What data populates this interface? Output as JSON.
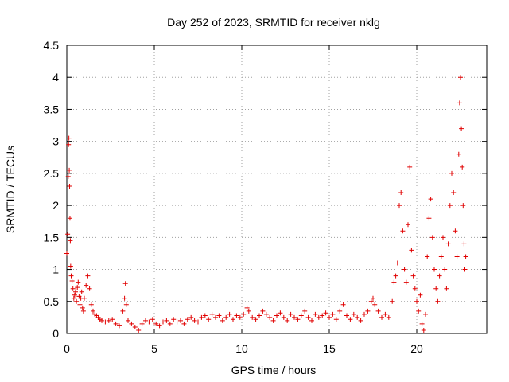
{
  "chart_data": {
    "type": "scatter",
    "title": "Day 252 of 2023, SRMTID for receiver nklg",
    "xlabel": "GPS time / hours",
    "ylabel": "SRMTID / TECUs",
    "xlim": [
      0,
      24
    ],
    "ylim": [
      0,
      4.5
    ],
    "x_ticks": [
      0,
      5,
      10,
      15,
      20
    ],
    "x_tick_labels": [
      "0",
      "5",
      "10",
      "15",
      "20"
    ],
    "y_ticks": [
      0,
      0.5,
      1,
      1.5,
      2,
      2.5,
      3,
      3.5,
      4,
      4.5
    ],
    "y_tick_labels": [
      "0",
      "0.5",
      "1",
      "1.5",
      "2",
      "2.5",
      "3",
      "3.5",
      "4",
      "4.5"
    ],
    "grid": true,
    "marker": "plus",
    "color": "#e00000",
    "series": [
      {
        "name": "SRMTID",
        "points": [
          [
            0.0,
            1.25
          ],
          [
            0.05,
            1.55
          ],
          [
            0.08,
            2.45
          ],
          [
            0.1,
            2.95
          ],
          [
            0.12,
            3.05
          ],
          [
            0.14,
            2.55
          ],
          [
            0.16,
            2.3
          ],
          [
            0.18,
            1.8
          ],
          [
            0.2,
            1.45
          ],
          [
            0.22,
            1.05
          ],
          [
            0.25,
            0.9
          ],
          [
            0.3,
            0.82
          ],
          [
            0.35,
            0.7
          ],
          [
            0.4,
            0.55
          ],
          [
            0.45,
            0.6
          ],
          [
            0.5,
            0.65
          ],
          [
            0.55,
            0.5
          ],
          [
            0.6,
            0.72
          ],
          [
            0.65,
            0.8
          ],
          [
            0.7,
            0.58
          ],
          [
            0.75,
            0.45
          ],
          [
            0.8,
            0.55
          ],
          [
            0.85,
            0.65
          ],
          [
            0.9,
            0.4
          ],
          [
            0.95,
            0.35
          ],
          [
            1.0,
            0.55
          ],
          [
            1.1,
            0.75
          ],
          [
            1.2,
            0.9
          ],
          [
            1.3,
            0.7
          ],
          [
            1.4,
            0.45
          ],
          [
            1.5,
            0.35
          ],
          [
            1.6,
            0.3
          ],
          [
            1.7,
            0.28
          ],
          [
            1.8,
            0.25
          ],
          [
            1.9,
            0.22
          ],
          [
            2.0,
            0.2
          ],
          [
            2.2,
            0.18
          ],
          [
            2.4,
            0.2
          ],
          [
            2.6,
            0.22
          ],
          [
            2.8,
            0.15
          ],
          [
            3.0,
            0.12
          ],
          [
            3.2,
            0.35
          ],
          [
            3.3,
            0.55
          ],
          [
            3.35,
            0.78
          ],
          [
            3.4,
            0.45
          ],
          [
            3.5,
            0.2
          ],
          [
            3.7,
            0.15
          ],
          [
            3.9,
            0.1
          ],
          [
            4.1,
            0.05
          ],
          [
            4.3,
            0.15
          ],
          [
            4.5,
            0.2
          ],
          [
            4.7,
            0.18
          ],
          [
            4.9,
            0.22
          ],
          [
            5.1,
            0.15
          ],
          [
            5.3,
            0.12
          ],
          [
            5.5,
            0.18
          ],
          [
            5.7,
            0.2
          ],
          [
            5.9,
            0.15
          ],
          [
            6.1,
            0.22
          ],
          [
            6.3,
            0.18
          ],
          [
            6.5,
            0.2
          ],
          [
            6.7,
            0.15
          ],
          [
            6.9,
            0.22
          ],
          [
            7.1,
            0.25
          ],
          [
            7.3,
            0.2
          ],
          [
            7.5,
            0.18
          ],
          [
            7.7,
            0.25
          ],
          [
            7.9,
            0.28
          ],
          [
            8.1,
            0.22
          ],
          [
            8.3,
            0.3
          ],
          [
            8.5,
            0.25
          ],
          [
            8.7,
            0.28
          ],
          [
            8.9,
            0.2
          ],
          [
            9.1,
            0.25
          ],
          [
            9.3,
            0.3
          ],
          [
            9.5,
            0.22
          ],
          [
            9.7,
            0.28
          ],
          [
            9.9,
            0.25
          ],
          [
            10.1,
            0.3
          ],
          [
            10.3,
            0.4
          ],
          [
            10.4,
            0.35
          ],
          [
            10.6,
            0.25
          ],
          [
            10.8,
            0.22
          ],
          [
            11.0,
            0.28
          ],
          [
            11.2,
            0.35
          ],
          [
            11.4,
            0.3
          ],
          [
            11.6,
            0.25
          ],
          [
            11.8,
            0.2
          ],
          [
            12.0,
            0.28
          ],
          [
            12.2,
            0.32
          ],
          [
            12.4,
            0.25
          ],
          [
            12.6,
            0.2
          ],
          [
            12.8,
            0.3
          ],
          [
            13.0,
            0.25
          ],
          [
            13.2,
            0.22
          ],
          [
            13.4,
            0.28
          ],
          [
            13.6,
            0.35
          ],
          [
            13.8,
            0.25
          ],
          [
            14.0,
            0.2
          ],
          [
            14.2,
            0.3
          ],
          [
            14.4,
            0.25
          ],
          [
            14.6,
            0.28
          ],
          [
            14.8,
            0.32
          ],
          [
            15.0,
            0.25
          ],
          [
            15.2,
            0.3
          ],
          [
            15.4,
            0.22
          ],
          [
            15.6,
            0.35
          ],
          [
            15.8,
            0.45
          ],
          [
            16.0,
            0.28
          ],
          [
            16.2,
            0.22
          ],
          [
            16.4,
            0.3
          ],
          [
            16.6,
            0.25
          ],
          [
            16.8,
            0.2
          ],
          [
            17.0,
            0.3
          ],
          [
            17.2,
            0.35
          ],
          [
            17.4,
            0.5
          ],
          [
            17.5,
            0.55
          ],
          [
            17.6,
            0.45
          ],
          [
            17.8,
            0.35
          ],
          [
            18.0,
            0.25
          ],
          [
            18.2,
            0.3
          ],
          [
            18.4,
            0.25
          ],
          [
            18.6,
            0.5
          ],
          [
            18.7,
            0.8
          ],
          [
            18.8,
            0.9
          ],
          [
            18.9,
            1.1
          ],
          [
            19.0,
            2.0
          ],
          [
            19.1,
            2.2
          ],
          [
            19.2,
            1.6
          ],
          [
            19.3,
            1.0
          ],
          [
            19.4,
            0.8
          ],
          [
            19.5,
            1.7
          ],
          [
            19.6,
            2.6
          ],
          [
            19.7,
            1.3
          ],
          [
            19.8,
            0.9
          ],
          [
            19.9,
            0.7
          ],
          [
            20.0,
            0.5
          ],
          [
            20.1,
            0.35
          ],
          [
            20.2,
            0.6
          ],
          [
            20.3,
            0.15
          ],
          [
            20.4,
            0.05
          ],
          [
            20.5,
            0.3
          ],
          [
            20.6,
            1.2
          ],
          [
            20.7,
            1.8
          ],
          [
            20.8,
            2.1
          ],
          [
            20.9,
            1.5
          ],
          [
            21.0,
            1.0
          ],
          [
            21.1,
            0.7
          ],
          [
            21.2,
            0.5
          ],
          [
            21.3,
            0.9
          ],
          [
            21.4,
            1.2
          ],
          [
            21.5,
            1.5
          ],
          [
            21.6,
            1.0
          ],
          [
            21.7,
            0.7
          ],
          [
            21.8,
            1.4
          ],
          [
            21.9,
            2.0
          ],
          [
            22.0,
            2.5
          ],
          [
            22.1,
            2.2
          ],
          [
            22.2,
            1.6
          ],
          [
            22.3,
            1.2
          ],
          [
            22.4,
            2.8
          ],
          [
            22.45,
            3.6
          ],
          [
            22.5,
            4.0
          ],
          [
            22.55,
            3.2
          ],
          [
            22.6,
            2.6
          ],
          [
            22.65,
            2.0
          ],
          [
            22.7,
            1.4
          ],
          [
            22.75,
            1.0
          ],
          [
            22.8,
            1.2
          ]
        ]
      }
    ]
  }
}
